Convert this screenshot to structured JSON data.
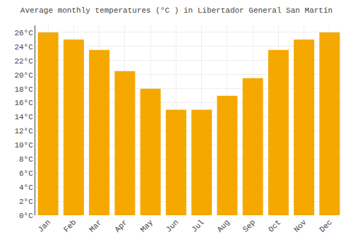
{
  "chart_data": {
    "type": "bar",
    "title": "Average monthly temperatures (°C ) in Libertador General San Martín",
    "categories": [
      "Jan",
      "Feb",
      "Mar",
      "Apr",
      "May",
      "Jun",
      "Jul",
      "Aug",
      "Sep",
      "Oct",
      "Nov",
      "Dec"
    ],
    "values": [
      26.0,
      25.0,
      23.5,
      20.5,
      18.0,
      15.0,
      15.0,
      17.0,
      19.5,
      23.5,
      25.0,
      26.0
    ],
    "color": "#F5A800",
    "ylim": [
      0,
      27
    ],
    "yticks": [
      {
        "value": 0,
        "label": "0°C"
      },
      {
        "value": 2,
        "label": "2°C"
      },
      {
        "value": 4,
        "label": "4°C"
      },
      {
        "value": 6,
        "label": "6°C"
      },
      {
        "value": 8,
        "label": "8°C"
      },
      {
        "value": 10,
        "label": "10°C"
      },
      {
        "value": 12,
        "label": "12°C"
      },
      {
        "value": 14,
        "label": "14°C"
      },
      {
        "value": 16,
        "label": "16°C"
      },
      {
        "value": 18,
        "label": "18°C"
      },
      {
        "value": 20,
        "label": "20°C"
      },
      {
        "value": 22,
        "label": "22°C"
      },
      {
        "value": 24,
        "label": "24°C"
      },
      {
        "value": 26,
        "label": "26°C"
      }
    ],
    "grid": true
  }
}
